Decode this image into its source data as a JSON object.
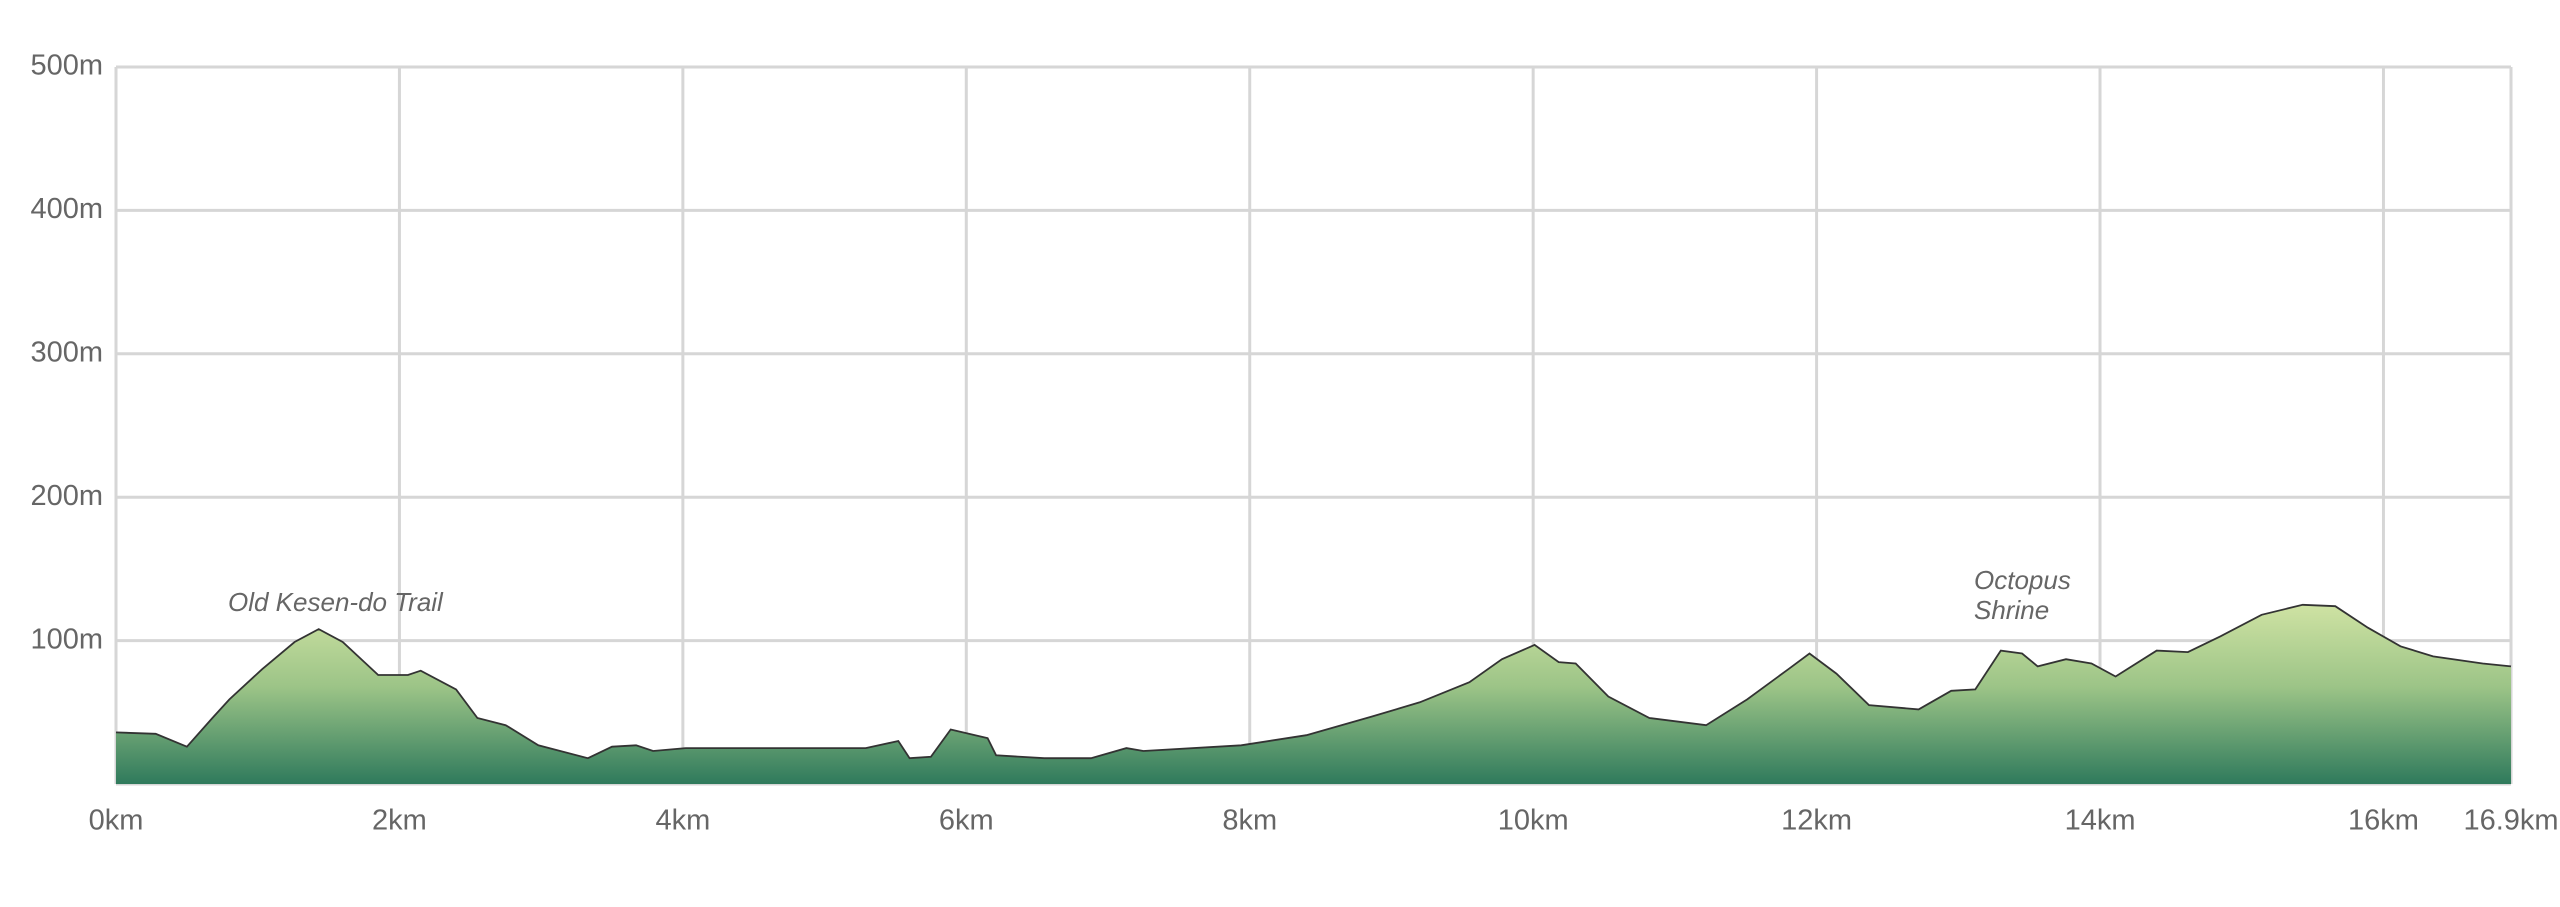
{
  "chart_data": {
    "type": "area",
    "x": [
      0,
      0.28,
      0.5,
      0.68,
      0.8,
      1.03,
      1.26,
      1.43,
      1.6,
      1.85,
      2.06,
      2.15,
      2.4,
      2.55,
      2.75,
      2.98,
      3.33,
      3.5,
      3.67,
      3.79,
      4.02,
      5.29,
      5.52,
      5.6,
      5.75,
      5.89,
      6.15,
      6.21,
      6.55,
      6.88,
      7.13,
      7.25,
      7.94,
      8.4,
      8.86,
      9.2,
      9.55,
      9.78,
      10.01,
      10.18,
      10.3,
      10.53,
      10.82,
      11.22,
      11.51,
      11.8,
      11.95,
      12.14,
      12.37,
      12.72,
      12.95,
      13.12,
      13.3,
      13.45,
      13.56,
      13.76,
      13.94,
      14.11,
      14.4,
      14.62,
      14.85,
      15.14,
      15.43,
      15.66,
      15.89,
      16.12,
      16.35,
      16.7,
      16.9
    ],
    "values": [
      36,
      35,
      26,
      46,
      59,
      80,
      99,
      108,
      99,
      76,
      76,
      79,
      66,
      46,
      41,
      27,
      18,
      26,
      27,
      23,
      25,
      25,
      30,
      18,
      19,
      38,
      32,
      20,
      18,
      18,
      25,
      23,
      27,
      34,
      47,
      57,
      71,
      87,
      97,
      85,
      84,
      61,
      46,
      41,
      59,
      80,
      91,
      77,
      55,
      52,
      65,
      66,
      93,
      91,
      82,
      87,
      84,
      75,
      93,
      92,
      103,
      118,
      125,
      124,
      109,
      96,
      89,
      84,
      82
    ],
    "xlim": [
      0,
      16.9
    ],
    "ylim": [
      0,
      500
    ],
    "xticks": [
      {
        "value": 0,
        "label": "0km"
      },
      {
        "value": 2,
        "label": "2km"
      },
      {
        "value": 4,
        "label": "4km"
      },
      {
        "value": 6,
        "label": "6km"
      },
      {
        "value": 8,
        "label": "8km"
      },
      {
        "value": 10,
        "label": "10km"
      },
      {
        "value": 12,
        "label": "12km"
      },
      {
        "value": 14,
        "label": "14km"
      },
      {
        "value": 16,
        "label": "16km"
      },
      {
        "value": 16.9,
        "label": "16.9km"
      }
    ],
    "yticks": [
      {
        "value": 100,
        "label": "100m"
      },
      {
        "value": 200,
        "label": "200m"
      },
      {
        "value": 300,
        "label": "300m"
      },
      {
        "value": 400,
        "label": "400m"
      },
      {
        "value": 500,
        "label": "500m"
      }
    ],
    "grid": true,
    "annotations": [
      [
        "Old Kesen-do Trail"
      ],
      [
        "Octopus",
        "Shrine"
      ]
    ]
  }
}
